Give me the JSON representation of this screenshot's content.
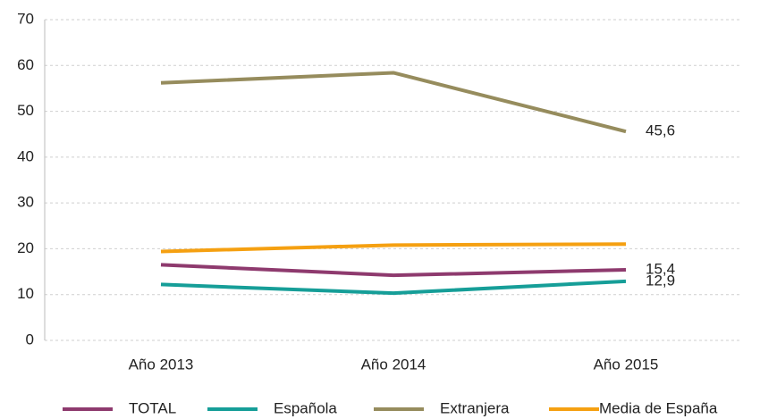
{
  "chart_data": {
    "type": "line",
    "categories": [
      "Año 2013",
      "Año 2014",
      "Año 2015"
    ],
    "series": [
      {
        "name": "TOTAL",
        "color": "#8e3a6e",
        "values": [
          16.5,
          14.2,
          15.4
        ],
        "value_labels": [
          null,
          null,
          "15,4"
        ]
      },
      {
        "name": "Española",
        "color": "#169e98",
        "values": [
          12.2,
          10.3,
          12.9
        ],
        "value_labels": [
          null,
          null,
          "12,9"
        ]
      },
      {
        "name": "Extranjera",
        "color": "#968c5d",
        "values": [
          56.2,
          58.4,
          45.6
        ],
        "value_labels": [
          null,
          null,
          "45,6"
        ]
      },
      {
        "name": "Media de España",
        "color": "#f5a011",
        "values": [
          19.4,
          20.8,
          21.0
        ]
      }
    ],
    "ylim": [
      0,
      70
    ],
    "yticks": [
      0,
      10,
      20,
      30,
      40,
      50,
      60,
      70
    ],
    "grid": true,
    "legend": "bottom"
  }
}
